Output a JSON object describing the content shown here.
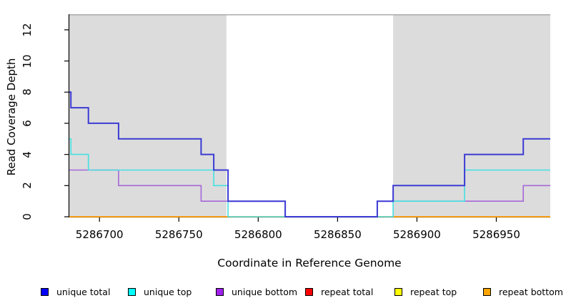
{
  "chart_data": {
    "type": "line",
    "subtype": "step",
    "title": "",
    "xlabel": "Coordinate in Reference Genome",
    "ylabel": "Read Coverage Depth",
    "xlim": [
      5286681,
      5286984
    ],
    "ylim": [
      0,
      13
    ],
    "x_ticks": [
      "5286700",
      "5286750",
      "5286800",
      "5286850",
      "5286900",
      "5286950"
    ],
    "x_tick_values": [
      5286700,
      5286750,
      5286800,
      5286850,
      5286900,
      5286950
    ],
    "y_ticks": [
      "0",
      "2",
      "4",
      "6",
      "8",
      "10",
      "12"
    ],
    "y_tick_values": [
      0,
      2,
      4,
      6,
      8,
      10,
      12
    ],
    "grid": false,
    "legend_position": "bottom",
    "shaded_regions": [
      {
        "x0": 5286681,
        "x1": 5286780,
        "fill": "#dcdcdc"
      },
      {
        "x0": 5286885,
        "x1": 5286984,
        "fill": "#dcdcdc"
      }
    ],
    "region_top_line_color": "#9c9c9c",
    "axis_color": "#000000",
    "series": [
      {
        "name": "unique total",
        "legend_color": "#0000ff",
        "line_color": "#3b3bd4",
        "steps": [
          [
            5286681,
            8
          ],
          [
            5286682,
            7
          ],
          [
            5286693,
            6
          ],
          [
            5286712,
            5
          ],
          [
            5286764,
            4
          ],
          [
            5286772,
            3
          ],
          [
            5286781,
            1
          ],
          [
            5286817,
            0
          ],
          [
            5286875,
            1
          ],
          [
            5286885,
            2
          ],
          [
            5286930,
            4
          ],
          [
            5286967,
            5
          ]
        ]
      },
      {
        "name": "unique top",
        "legend_color": "#00ffff",
        "line_color": "#46dfe1",
        "steps": [
          [
            5286681,
            5
          ],
          [
            5286682,
            4
          ],
          [
            5286693,
            3
          ],
          [
            5286772,
            2
          ],
          [
            5286781,
            0
          ],
          [
            5286885,
            1
          ],
          [
            5286930,
            3
          ]
        ]
      },
      {
        "name": "unique bottom",
        "legend_color": "#a020f0",
        "line_color": "#a667d9",
        "steps": [
          [
            5286681,
            3
          ],
          [
            5286712,
            2
          ],
          [
            5286764,
            1
          ],
          [
            5286817,
            0
          ],
          [
            5286875,
            1
          ],
          [
            5286967,
            2
          ]
        ]
      },
      {
        "name": "repeat total",
        "legend_color": "#ff0000",
        "line_color": "#dd2222",
        "steps": [
          [
            5286681,
            0
          ]
        ]
      },
      {
        "name": "repeat top",
        "legend_color": "#ffff00",
        "line_color": "#eded4f",
        "steps": [
          [
            5286681,
            0
          ]
        ]
      },
      {
        "name": "repeat bottom",
        "legend_color": "#ffa500",
        "line_color": "#ff9900",
        "steps": [
          [
            5286681,
            0
          ]
        ]
      }
    ],
    "draw_order": [
      3,
      4,
      5,
      2,
      1,
      0
    ]
  }
}
